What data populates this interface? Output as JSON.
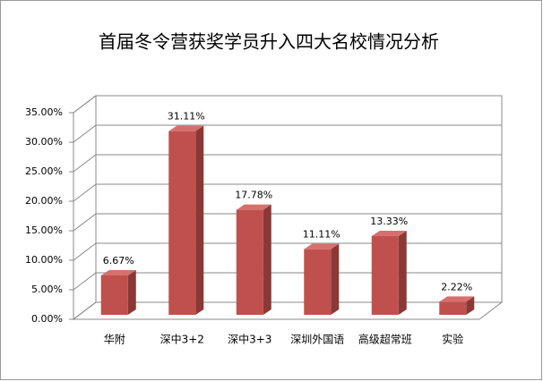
{
  "chart_data": {
    "type": "bar3d",
    "title": "首届冬令营获奖学员升入四大名校情况分析",
    "categories": [
      "华附",
      "深中3+2",
      "深中3+3",
      "深圳外国语",
      "高级超常班",
      "实验"
    ],
    "values": [
      6.67,
      31.11,
      17.78,
      11.11,
      13.33,
      2.22
    ],
    "value_labels": [
      "6.67%",
      "31.11%",
      "17.78%",
      "11.11%",
      "13.33%",
      "2.22%"
    ],
    "color": "#c0504d",
    "ylim": [
      0,
      35
    ],
    "yticks": [
      {
        "value": 0,
        "label": "0.00%"
      },
      {
        "value": 5,
        "label": "5.00%"
      },
      {
        "value": 10,
        "label": "10.00%"
      },
      {
        "value": 15,
        "label": "15.00%"
      },
      {
        "value": 20,
        "label": "20.00%"
      },
      {
        "value": 25,
        "label": "25.00%"
      },
      {
        "value": 30,
        "label": "30.00%"
      },
      {
        "value": 35,
        "label": "35.00%"
      }
    ],
    "grid": true
  }
}
